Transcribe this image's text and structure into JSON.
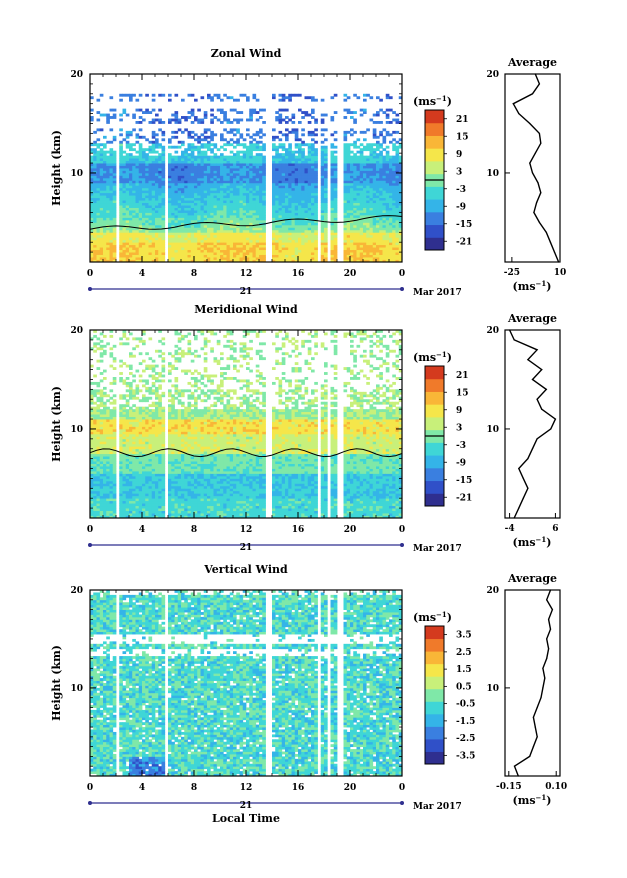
{
  "colors": {
    "scale": [
      "#2f2f8f",
      "#3050c8",
      "#3a7fe0",
      "#34b4e8",
      "#3fd6d6",
      "#7fe8a8",
      "#c8f07a",
      "#f5e64a",
      "#f9b637",
      "#f07a2a",
      "#d43a1e"
    ],
    "contour": "#000000",
    "line": "#000000"
  },
  "chart_data": [
    {
      "type": "heatmap",
      "title": "Zonal Wind",
      "ylabel": "Height (km)",
      "xlabel": "",
      "x_ticks": [
        "0",
        "4",
        "8",
        "12",
        "16",
        "20",
        "0"
      ],
      "y_ticks": [
        "10",
        "20"
      ],
      "ylim": [
        1,
        20
      ],
      "xlim": [
        0,
        24
      ],
      "day_label": "21",
      "month_label": "Mar 2017",
      "colorbar": {
        "unit": "(ms",
        "unit_sup": "−1",
        "unit_close": ")",
        "ticks": [
          "21",
          "15",
          "9",
          "3",
          "-3",
          "-9",
          "-15",
          "-21"
        ],
        "range": [
          -24,
          24
        ],
        "zero_line": 0
      },
      "gaps_hours": [
        2.1,
        5.9,
        13.7,
        17.6,
        18.4,
        19.2
      ],
      "profile": {
        "title": "Average",
        "xlabel": "(ms",
        "xlabel_sup": "−1",
        "xlabel_close": ")",
        "x_ticks": [
          "-25",
          "10"
        ],
        "xlim": [
          -30,
          10
        ],
        "y_ticks": [
          "10",
          "20"
        ],
        "heights": [
          1,
          2,
          3,
          4,
          5,
          6,
          7,
          8,
          9,
          10,
          11,
          12,
          13,
          14,
          15,
          16,
          17,
          18,
          19,
          20
        ],
        "values": [
          9,
          6,
          3,
          0,
          -5,
          -9,
          -7,
          -4,
          -6,
          -10,
          -12,
          -8,
          -4,
          -5,
          -12,
          -20,
          -24,
          -10,
          -5,
          -8
        ]
      }
    },
    {
      "type": "heatmap",
      "title": "Meridional Wind",
      "ylabel": "Height (km)",
      "xlabel": "",
      "x_ticks": [
        "0",
        "4",
        "8",
        "12",
        "16",
        "20",
        "0"
      ],
      "y_ticks": [
        "10",
        "20"
      ],
      "ylim": [
        1,
        20
      ],
      "xlim": [
        0,
        24
      ],
      "day_label": "21",
      "month_label": "Mar 2017",
      "colorbar": {
        "unit": "(ms",
        "unit_sup": "−1",
        "unit_close": ")",
        "ticks": [
          "21",
          "15",
          "9",
          "3",
          "-3",
          "-9",
          "-15",
          "-21"
        ],
        "range": [
          -24,
          24
        ],
        "zero_line": 0
      },
      "gaps_hours": [
        2.1,
        5.9,
        13.7,
        17.6,
        18.4,
        19.2
      ],
      "profile": {
        "title": "Average",
        "xlabel": "(ms",
        "xlabel_sup": "−1",
        "xlabel_close": ")",
        "x_ticks": [
          "-4",
          "6"
        ],
        "xlim": [
          -5,
          7
        ],
        "y_ticks": [
          "10",
          "20"
        ],
        "heights": [
          1,
          2,
          3,
          4,
          5,
          6,
          7,
          8,
          9,
          10,
          11,
          12,
          13,
          14,
          15,
          16,
          17,
          18,
          19,
          20
        ],
        "values": [
          -3,
          -2,
          -1,
          0,
          -1,
          -2,
          0,
          1,
          2,
          5,
          6,
          3,
          2,
          4,
          1,
          3,
          0,
          2,
          -3,
          -4
        ]
      }
    },
    {
      "type": "heatmap",
      "title": "Vertical Wind",
      "ylabel": "Height (km)",
      "xlabel": "Local Time",
      "x_ticks": [
        "0",
        "4",
        "8",
        "12",
        "16",
        "20",
        "0"
      ],
      "y_ticks": [
        "10",
        "20"
      ],
      "ylim": [
        1,
        20
      ],
      "xlim": [
        0,
        24
      ],
      "day_label": "21",
      "month_label": "Mar 2017",
      "colorbar": {
        "unit": "(ms",
        "unit_sup": "−1",
        "unit_close": ")",
        "ticks": [
          "3.5",
          "2.5",
          "1.5",
          "0.5",
          "-0.5",
          "-1.5",
          "-2.5",
          "-3.5"
        ],
        "range": [
          -4,
          4
        ],
        "zero_line": null
      },
      "gaps_hours": [
        2.1,
        5.9,
        13.7,
        17.6,
        18.4,
        19.2
      ],
      "profile": {
        "title": "Average",
        "xlabel": "(ms",
        "xlabel_sup": "−1",
        "xlabel_close": ")",
        "x_ticks": [
          "-0.15",
          "0.10"
        ],
        "xlim": [
          -0.17,
          0.12
        ],
        "y_ticks": [
          "10",
          "20"
        ],
        "heights": [
          1,
          2,
          3,
          4,
          5,
          6,
          7,
          8,
          9,
          10,
          11,
          12,
          13,
          14,
          15,
          16,
          17,
          18,
          19,
          20
        ],
        "values": [
          -0.1,
          -0.12,
          -0.04,
          -0.02,
          0.0,
          -0.01,
          -0.02,
          0.0,
          0.02,
          0.03,
          0.04,
          0.03,
          0.05,
          0.06,
          0.05,
          0.07,
          0.06,
          0.08,
          0.05,
          0.07
        ]
      }
    }
  ]
}
